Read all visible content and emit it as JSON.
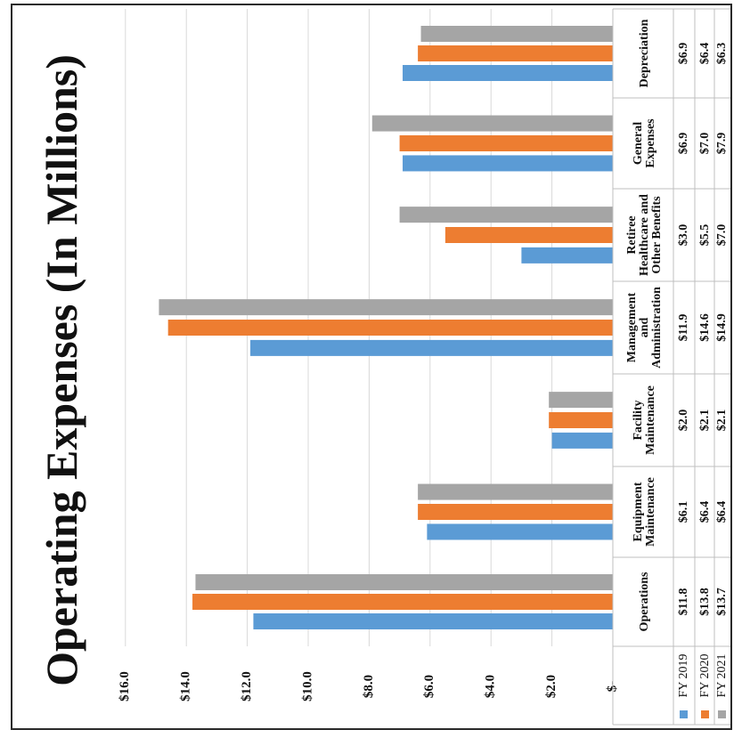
{
  "chart_data": {
    "type": "bar",
    "orientation": "rotated-90-ccw",
    "title": "Operating Expenses (In Millions)",
    "categories": [
      "Operations",
      "Equipment Maintenance",
      "Facility Maintenance",
      "Management and Administration",
      "Retiree Healthcare and Other Benefits",
      "General Expenses",
      "Depreciation"
    ],
    "series": [
      {
        "name": "FY 2019",
        "color": "#5b9bd5",
        "values": [
          11.8,
          6.1,
          2.0,
          11.9,
          3.0,
          6.9,
          6.9
        ],
        "labels": [
          "$11.8",
          "$6.1",
          "$2.0",
          "$11.9",
          "$3.0",
          "$6.9",
          "$6.9"
        ]
      },
      {
        "name": "FY 2020",
        "color": "#ed7d31",
        "values": [
          13.8,
          6.4,
          2.1,
          14.6,
          5.5,
          7.0,
          6.4
        ],
        "labels": [
          "$13.8",
          "$6.4",
          "$2.1",
          "$14.6",
          "$5.5",
          "$7.0",
          "$6.4"
        ]
      },
      {
        "name": "FY 2021",
        "color": "#a5a5a5",
        "values": [
          13.7,
          6.4,
          2.1,
          14.9,
          7.0,
          7.9,
          6.3
        ],
        "labels": [
          "$13.7",
          "$6.4",
          "$2.1",
          "$14.9",
          "$7.0",
          "$7.9",
          "$6.3"
        ]
      }
    ],
    "ylim": [
      0,
      16
    ],
    "y_ticks": [
      {
        "value": 0,
        "label": "$-"
      },
      {
        "value": 2,
        "label": "$2.0"
      },
      {
        "value": 4,
        "label": "$4.0"
      },
      {
        "value": 6,
        "label": "$6.0"
      },
      {
        "value": 8,
        "label": "$8.0"
      },
      {
        "value": 10,
        "label": "$10.0"
      },
      {
        "value": 12,
        "label": "$12.0"
      },
      {
        "value": 14,
        "label": "$14.0"
      },
      {
        "value": 16,
        "label": "$16.0"
      }
    ],
    "grid": true,
    "legend": "data-table"
  }
}
